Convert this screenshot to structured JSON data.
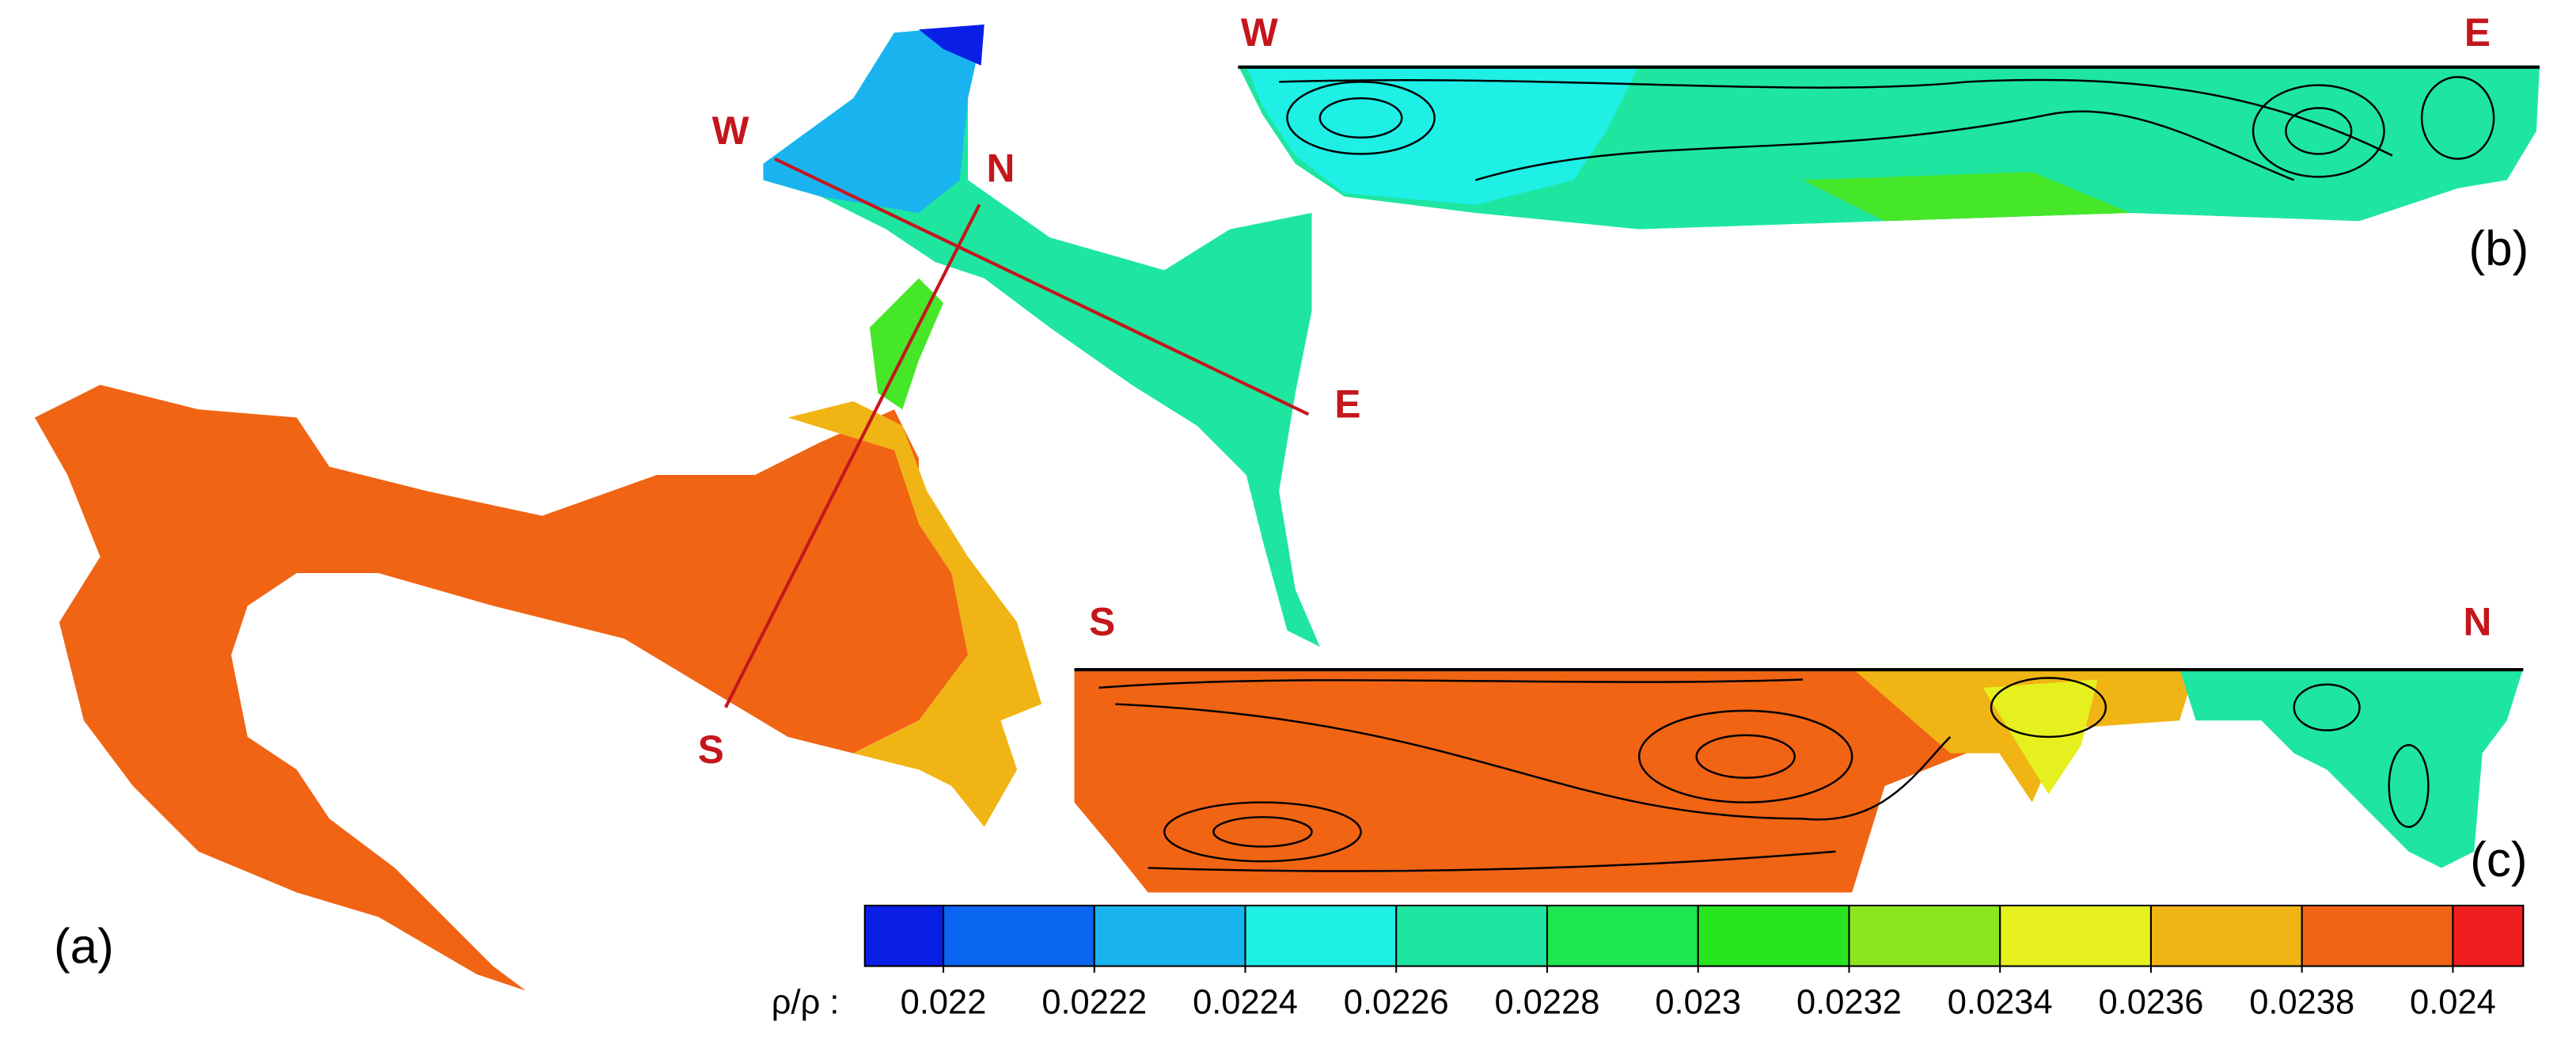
{
  "panel_a": {
    "label": "(a)",
    "west": "W",
    "north": "N",
    "east": "E",
    "south": "S"
  },
  "panel_b": {
    "label": "(b)",
    "west": "W",
    "east": "E"
  },
  "panel_c": {
    "label": "(c)",
    "south": "S",
    "north": "N"
  },
  "colorbar": {
    "label": "ρ/ρ :",
    "ticks": [
      0.022,
      0.0222,
      0.0224,
      0.0226,
      0.0228,
      0.023,
      0.0232,
      0.0234,
      0.0236,
      0.0238,
      0.024
    ],
    "colors": [
      "#0a1fe6",
      "#0a66f0",
      "#19b4f0",
      "#1ef0e6",
      "#1ee6a0",
      "#1ee650",
      "#28e61e",
      "#8ce61e",
      "#e6f01e",
      "#f0b414",
      "#f06414",
      "#f01e1e"
    ]
  }
}
